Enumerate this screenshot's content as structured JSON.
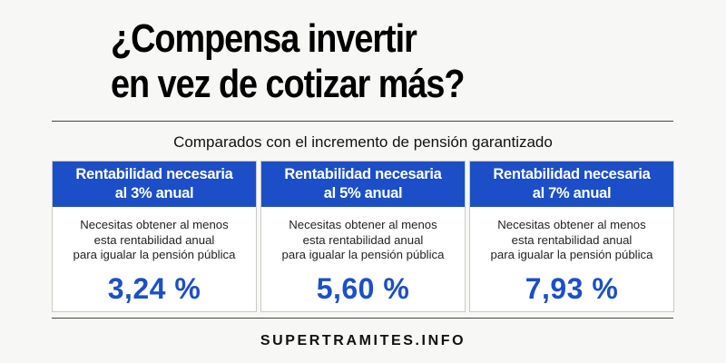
{
  "title": {
    "line1": "¿Compensa invertir",
    "line2": "en vez de cotizar más?"
  },
  "subtitle": "Comparados con el incremento de pensión garantizado",
  "cards": [
    {
      "header_line1": "Rentabilidad necesaria",
      "header_line2": "al 3% anual",
      "desc_line1": "Necesitas obtener al menos",
      "desc_line2": "esta rentabilidad anual",
      "desc_line3": "para igualar la pensión pública",
      "value": "3,24 %"
    },
    {
      "header_line1": "Rentabilidad necesaria",
      "header_line2": "al 5% anual",
      "desc_line1": "Necesitas obtener al menos",
      "desc_line2": "esta rentabilidad anual",
      "desc_line3": "para igualar la pensión pública",
      "value": "5,60 %"
    },
    {
      "header_line1": "Rentabilidad necesaria",
      "header_line2": "al 7% anual",
      "desc_line1": "Necesitas obtener al menos",
      "desc_line2": "esta rentabilidad anual",
      "desc_line3": "para igualar la pensión pública",
      "value": "7,93 %"
    }
  ],
  "footer": "SUPERTRAMITES.INFO",
  "colors": {
    "accent": "#1c4fc7",
    "background": "#f7f7f5"
  }
}
